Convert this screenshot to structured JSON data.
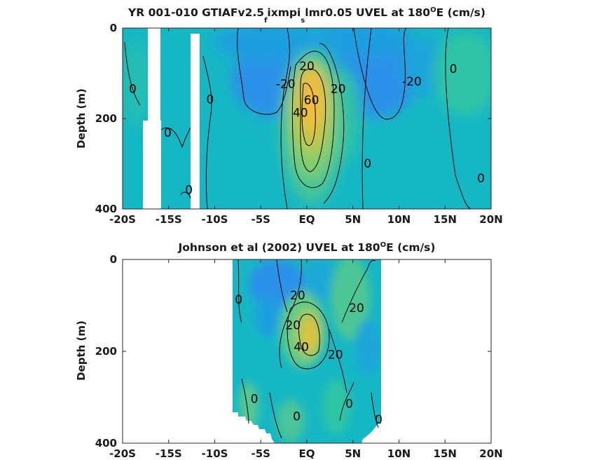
{
  "chart_data": [
    {
      "type": "contour",
      "title_parts": [
        "YR 001-010 GTIAFv2.5",
        "f",
        "ixmpi",
        "s",
        "lmr0.05 UVEL at 180",
        "O",
        "E (cm/s)"
      ],
      "xlabel": "",
      "ylabel": "Depth (m)",
      "xlim": [
        -20,
        20
      ],
      "ylim": [
        400,
        0
      ],
      "xticks": [
        -20,
        -15,
        -10,
        -5,
        0,
        5,
        10,
        15,
        20
      ],
      "xtick_labels": [
        "-20S",
        "-15S",
        "-10S",
        "-5S",
        "EQ",
        "5N",
        "10N",
        "15N",
        "20N"
      ],
      "yticks": [
        0,
        200,
        400
      ],
      "ytick_labels": [
        "0",
        "200",
        "400"
      ],
      "contour_levels": [
        -20,
        0,
        20,
        40,
        60
      ],
      "contour_labels": [
        {
          "text": "-20",
          "lat": -2.3,
          "depth": 123
        },
        {
          "text": "20",
          "lat": 0.0,
          "depth": 84
        },
        {
          "text": "20",
          "lat": 3.4,
          "depth": 134
        },
        {
          "text": "40",
          "lat": -0.7,
          "depth": 187
        },
        {
          "text": "60",
          "lat": 0.5,
          "depth": 159
        },
        {
          "text": "-20",
          "lat": 11.4,
          "depth": 118
        },
        {
          "text": "0",
          "lat": 15.9,
          "depth": 90
        },
        {
          "text": "0",
          "lat": 6.6,
          "depth": 299
        },
        {
          "text": "0",
          "lat": 18.9,
          "depth": 332
        },
        {
          "text": "0",
          "lat": -18.9,
          "depth": 134
        },
        {
          "text": "0",
          "lat": -10.5,
          "depth": 157
        },
        {
          "text": "0",
          "lat": -15.1,
          "depth": 231
        },
        {
          "text": "0",
          "lat": -12.8,
          "depth": 357
        }
      ]
    },
    {
      "type": "contour",
      "title_parts": [
        "Johnson et al (2002) UVEL at 180",
        "O",
        "E (cm/s)"
      ],
      "xlabel": "",
      "ylabel": "Depth (m)",
      "xlim": [
        -20,
        20
      ],
      "ylim": [
        400,
        0
      ],
      "xticks": [
        -20,
        -15,
        -10,
        -5,
        0,
        5,
        10,
        15,
        20
      ],
      "xtick_labels": [
        "-20S",
        "-15S",
        "-10S",
        "-5S",
        "EQ",
        "5N",
        "10N",
        "15N",
        "20N"
      ],
      "yticks": [
        0,
        200,
        400
      ],
      "ytick_labels": [
        "0",
        "200",
        "400"
      ],
      "data_lat_range": [
        -8,
        8
      ],
      "contour_levels": [
        -20,
        0,
        20,
        40
      ],
      "contour_labels": [
        {
          "text": "0",
          "lat": -7.4,
          "depth": 87
        },
        {
          "text": "20",
          "lat": -1.0,
          "depth": 78
        },
        {
          "text": "20",
          "lat": -1.5,
          "depth": 143
        },
        {
          "text": "40",
          "lat": -0.6,
          "depth": 190
        },
        {
          "text": "20",
          "lat": 3.1,
          "depth": 207
        },
        {
          "text": "20",
          "lat": 5.4,
          "depth": 105
        },
        {
          "text": "0",
          "lat": -5.7,
          "depth": 303
        },
        {
          "text": "0",
          "lat": -1.1,
          "depth": 341
        },
        {
          "text": "0",
          "lat": 4.6,
          "depth": 314
        },
        {
          "text": "0",
          "lat": 7.8,
          "depth": 348
        }
      ]
    }
  ]
}
